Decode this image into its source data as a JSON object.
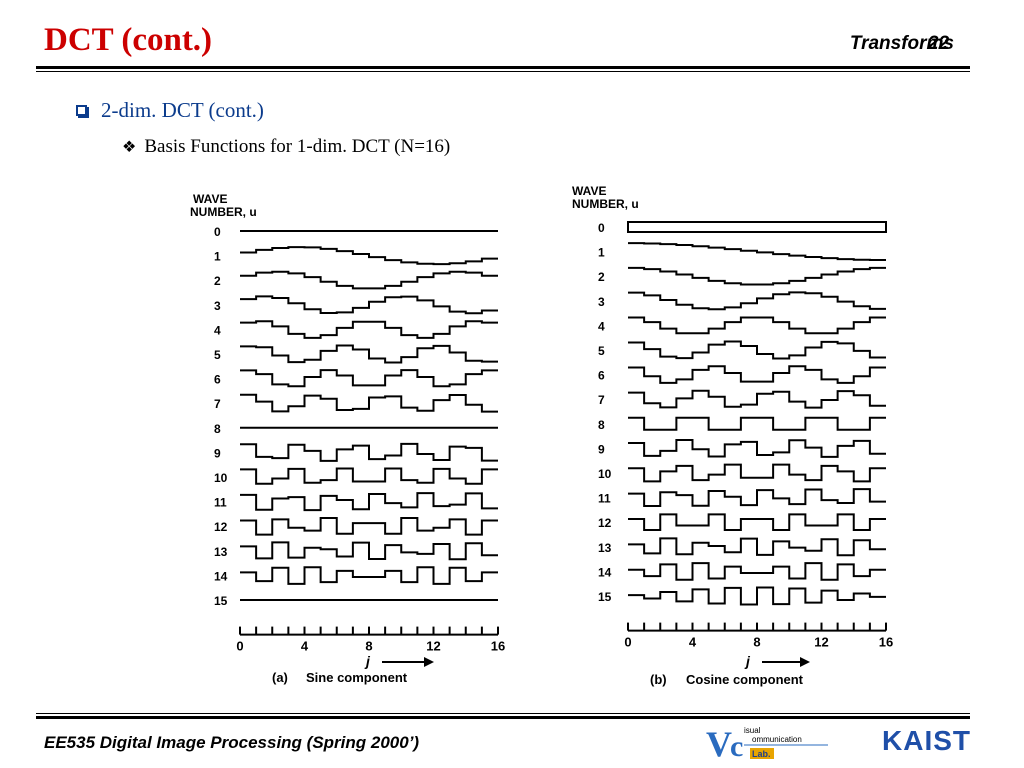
{
  "header": {
    "title": "DCT (cont.)",
    "topic": "Transforms",
    "page_number": "22"
  },
  "bullets": {
    "level1": "2-dim. DCT (cont.)",
    "level2": "Basis Functions for 1-dim. DCT (N=16)"
  },
  "figure": {
    "column_header_line1": "WAVE",
    "column_header_line2": "NUMBER, u",
    "x_axis_label": "j",
    "panels": [
      {
        "caption_letter": "(a)",
        "caption": "Sine component"
      },
      {
        "caption_letter": "(b)",
        "caption": "Cosine component"
      }
    ],
    "wave_numbers": [
      "0",
      "1",
      "2",
      "3",
      "4",
      "5",
      "6",
      "7",
      "8",
      "9",
      "10",
      "11",
      "12",
      "13",
      "14",
      "15"
    ],
    "tick_labels": [
      "0",
      "4",
      "8",
      "12",
      "16"
    ],
    "N": 16
  },
  "footer": {
    "course": "EE535 Digital Image Processing (Spring 2000’)",
    "logo_vc_text_line1": "isual",
    "logo_vc_text_line2": "ommunication",
    "logo_vc_lab": "Lab.",
    "logo_kaist": "KAIST"
  },
  "colors": {
    "title": "#cc0000",
    "bullet": "#0b3b8c",
    "kaist_logo": "#1f4fa8",
    "vc_logo": "#2a6bbf",
    "lab_logo": "#e8a400"
  }
}
